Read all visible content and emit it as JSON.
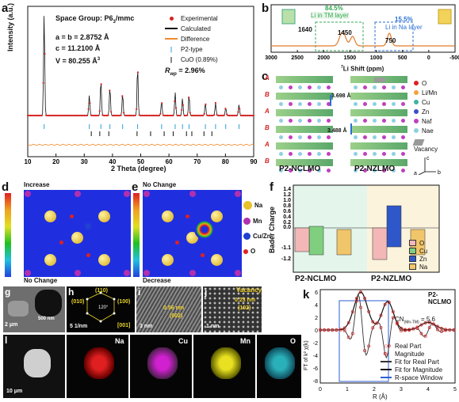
{
  "panel_a": {
    "label": "a",
    "space_group": "Space Group: P6",
    "space_group_sub": "3",
    "space_group_suffix": "/mmc",
    "lattice_ab": "a = b = 2.8752 Å",
    "lattice_c": "c = 11.2100 Å",
    "volume": "V = 80.255 Å",
    "volume_sup": "3",
    "legend": [
      "Experimental",
      "Calculated",
      "Difference",
      "P2-type",
      "CuO (0.89%)"
    ],
    "rwp_label": "R",
    "rwp_sub": "wp",
    "rwp_value": " = 2.96%",
    "ylabel": "Intensity (a.u.)",
    "xlabel": "2 Theta (degree)",
    "xticks": [
      "10",
      "20",
      "30",
      "40",
      "50",
      "60",
      "70",
      "80",
      "90"
    ]
  },
  "panel_b": {
    "label": "b",
    "pct_tm": "84.5%",
    "li_tm": "Li in TM layer",
    "pct_na": "15.5%",
    "li_na": "Li in Na layer",
    "peak1": "1640",
    "peak2": "1450",
    "peak3": "750",
    "xlabel": "Li Shift (ppm)",
    "xlabel_sup": "7",
    "xticks": [
      "3000",
      "2500",
      "2000",
      "1500",
      "1000",
      "500",
      "0",
      "-500"
    ]
  },
  "panel_c": {
    "label": "c",
    "layer_labels": [
      "A",
      "B",
      "A",
      "B",
      "A",
      "B"
    ],
    "d1": "3.698 Å",
    "d2": "3.488 Å",
    "name1": "P2-NCLMO",
    "name2": "P2-NZLMO",
    "legend": [
      "O",
      "Li/Mn",
      "Cu",
      "Zn",
      "Naf",
      "Nae",
      "Vacancy"
    ],
    "axis_c": "c",
    "axis_a": "a",
    "axis_b": "b"
  },
  "panel_d": {
    "label": "d",
    "top": "Increase",
    "bottom": "No Change"
  },
  "panel_e": {
    "label": "e",
    "top": "No Change",
    "bottom": "Decrease",
    "legend": [
      "Na",
      "Mn",
      "Cu/Zn",
      "O"
    ]
  },
  "panel_f": {
    "label": "f",
    "ylabel": "Bader Charge",
    "yticks": [
      "1.4",
      "1.2",
      "1.0",
      "0.8",
      "0.6",
      "0.4",
      "0.2",
      "0.0",
      "-1.1",
      "-1.2"
    ],
    "legend": [
      "O",
      "Cu",
      "Zn",
      "Na"
    ],
    "groups": [
      "P2-NCLMO",
      "P2-NZLMO"
    ]
  },
  "panel_g": {
    "label": "g",
    "scale1": "2 μm",
    "scale2": "500 nm"
  },
  "panel_h": {
    "label": "h",
    "spots": [
      "(110)",
      "(010)",
      "(100)",
      "[001]"
    ],
    "angle": "120°",
    "scale": "5 1/nm"
  },
  "panel_i": {
    "label": "i",
    "d": "0.56 nm",
    "plane": "(002)",
    "scale": "3 nm"
  },
  "panel_j": {
    "label": "j",
    "vacancy": "Vacancy",
    "d": "0.23 nm",
    "plane": "(102)",
    "scale": "1 nm"
  },
  "panel_l": {
    "label": "l",
    "scale": "10 μm",
    "elements": [
      "Na",
      "Cu",
      "Mn",
      "O"
    ]
  },
  "panel_k": {
    "label": "k",
    "title": "P2-NCLMO",
    "cn_label": "CN",
    "cn_sub": "(Mn-TM)",
    "cn_value": " = 5.6",
    "legend": [
      "Real Part",
      "Magnitude",
      "Fit for Real Part",
      "Fit for Magnitude",
      "R-space Window"
    ],
    "ylabel": "FT of k² χ(k)",
    "xlabel": "R (Å)",
    "yticks": [
      "6",
      "4",
      "2",
      "0",
      "-2",
      "-4",
      "-6",
      "-8"
    ],
    "xticks": [
      "0",
      "1",
      "2",
      "3",
      "4",
      "5"
    ]
  },
  "colors": {
    "experimental": "#d42020",
    "calculated": "#111111",
    "difference": "#f08a2a",
    "p2_tick": "#2aa0d8",
    "cuo_tick": "#111111",
    "nmr_line": "#e07a2a",
    "tm_box": "#34a853",
    "na_box": "#2b6fd6",
    "bar_o": "#f3b7b7",
    "bar_cu": "#7fcf7f",
    "bar_zn": "#2e57c9",
    "bar_na": "#f1c56a",
    "na_em": "#e02020",
    "cu_em": "#d020d0",
    "mn_em": "#e8e020",
    "o_em": "#2ab0b8"
  }
}
